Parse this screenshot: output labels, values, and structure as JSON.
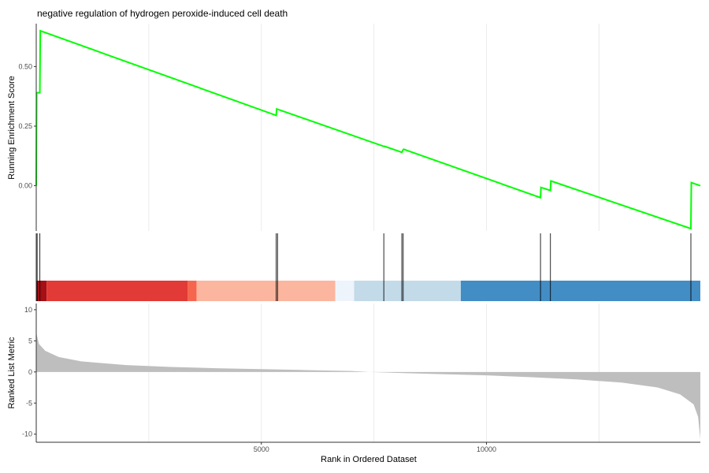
{
  "chart_data": {
    "type": "line",
    "title": "negative regulation of hydrogen peroxide-induced cell death",
    "xlabel": "Rank in Ordered Dataset",
    "x_ticks": [
      5000,
      10000
    ],
    "xlim": [
      0,
      14750
    ],
    "grid": "vertical minor gridlines",
    "panels": [
      {
        "name": "running-enrichment",
        "ylabel": "Running Enrichment Score",
        "y_ticks": [
          "0.00",
          "0.25",
          "0.50"
        ],
        "ylim": [
          -0.19,
          0.68
        ],
        "series": [
          {
            "color": "#00ff00",
            "points": [
              [
                0,
                0.0
              ],
              [
                10,
                0.39
              ],
              [
                80,
                0.39
              ],
              [
                90,
                0.65
              ],
              [
                5330,
                0.295
              ],
              [
                5340,
                0.322
              ],
              [
                7720,
                0.165
              ],
              [
                7740,
                0.165
              ],
              [
                8120,
                0.14
              ],
              [
                8140,
                0.148
              ],
              [
                8160,
                0.153
              ],
              [
                11200,
                -0.05
              ],
              [
                11210,
                -0.007
              ],
              [
                11420,
                -0.02
              ],
              [
                11430,
                0.02
              ],
              [
                14540,
                -0.18
              ],
              [
                14550,
                0.013
              ],
              [
                14750,
                0.0
              ]
            ]
          }
        ]
      },
      {
        "name": "gene-hits",
        "hits": [
          20,
          80,
          5330,
          5360,
          7720,
          8120,
          8150,
          11200,
          11420,
          14540
        ],
        "color_bands": [
          {
            "from": 0,
            "to": 230,
            "color": "#a50f15"
          },
          {
            "from": 230,
            "to": 3360,
            "color": "#e23a36"
          },
          {
            "from": 3360,
            "to": 3560,
            "color": "#f6664f"
          },
          {
            "from": 3560,
            "to": 6640,
            "color": "#fcb59e"
          },
          {
            "from": 6640,
            "to": 7060,
            "color": "#eef4fb"
          },
          {
            "from": 7060,
            "to": 9430,
            "color": "#c3dbe9"
          },
          {
            "from": 9430,
            "to": 14750,
            "color": "#438dc5"
          }
        ]
      },
      {
        "name": "ranked-list",
        "ylabel": "Ranked List Metric",
        "y_ticks": [
          10,
          5,
          0,
          -5,
          -10
        ],
        "ylim": [
          -11.3,
          11
        ],
        "fill": "#bebebe",
        "curve": [
          [
            0,
            6.3
          ],
          [
            60,
            4.5
          ],
          [
            200,
            3.4
          ],
          [
            500,
            2.4
          ],
          [
            1000,
            1.7
          ],
          [
            2000,
            1.1
          ],
          [
            3000,
            0.8
          ],
          [
            4000,
            0.6
          ],
          [
            5000,
            0.45
          ],
          [
            6000,
            0.3
          ],
          [
            7000,
            0.15
          ],
          [
            7400,
            0.0
          ],
          [
            8000,
            -0.15
          ],
          [
            9000,
            -0.35
          ],
          [
            10000,
            -0.55
          ],
          [
            11000,
            -0.85
          ],
          [
            12000,
            -1.2
          ],
          [
            13000,
            -1.7
          ],
          [
            13800,
            -2.5
          ],
          [
            14300,
            -3.6
          ],
          [
            14600,
            -5.2
          ],
          [
            14700,
            -7.2
          ],
          [
            14750,
            -10.8
          ]
        ]
      }
    ]
  }
}
